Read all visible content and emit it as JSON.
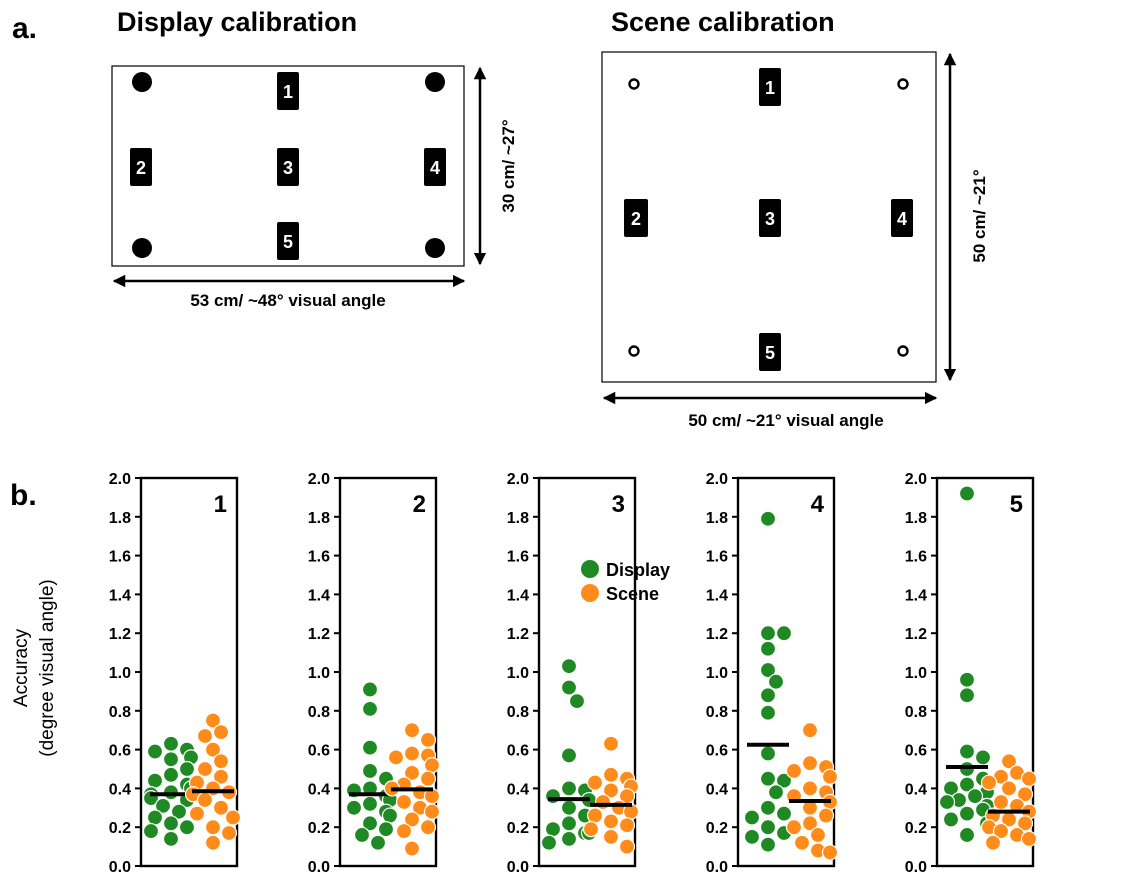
{
  "panel_a": {
    "label": "a.",
    "display": {
      "title": "Display calibration",
      "targets": [
        "1",
        "2",
        "3",
        "4",
        "5"
      ],
      "width_label": "53 cm/ ~48° visual angle",
      "height_label": "30 cm/ ~27°"
    },
    "scene": {
      "title": "Scene calibration",
      "targets": [
        "1",
        "2",
        "3",
        "4",
        "5"
      ],
      "width_label": "50 cm/ ~21° visual angle",
      "height_label": "50 cm/ ~21°"
    }
  },
  "panel_b": {
    "label": "b.",
    "ylabel_line1": "Accuracy",
    "ylabel_line2": "(degree visual angle)",
    "ticks": [
      "0.0",
      "0.2",
      "0.4",
      "0.6",
      "0.8",
      "1.0",
      "1.2",
      "1.4",
      "1.6",
      "1.8",
      "2.0"
    ]
  },
  "colors": {
    "display": "#1f8a24",
    "scene": "#ff8c1a",
    "mean_bar": "#000000"
  },
  "chart_data": {
    "type": "scatter",
    "ylabel": "Accuracy (degree visual angle)",
    "ylim": [
      0,
      2.0
    ],
    "legend": {
      "entries": [
        "Display",
        "Scene"
      ],
      "placement": "inside panel 3, upper-left"
    },
    "panels": [
      {
        "title": "1",
        "series": [
          {
            "name": "Display",
            "mean": 0.37,
            "values": [
              0.63,
              0.6,
              0.59,
              0.56,
              0.55,
              0.5,
              0.47,
              0.44,
              0.42,
              0.4,
              0.38,
              0.37,
              0.35,
              0.34,
              0.31,
              0.28,
              0.25,
              0.22,
              0.2,
              0.18,
              0.14
            ]
          },
          {
            "name": "Scene",
            "mean": 0.385,
            "values": [
              0.75,
              0.69,
              0.67,
              0.6,
              0.54,
              0.5,
              0.46,
              0.43,
              0.4,
              0.38,
              0.37,
              0.34,
              0.3,
              0.27,
              0.25,
              0.2,
              0.17,
              0.12
            ]
          }
        ]
      },
      {
        "title": "2",
        "series": [
          {
            "name": "Display",
            "mean": 0.37,
            "values": [
              0.91,
              0.81,
              0.61,
              0.49,
              0.45,
              0.4,
              0.39,
              0.36,
              0.34,
              0.32,
              0.3,
              0.28,
              0.26,
              0.22,
              0.19,
              0.16,
              0.12
            ]
          },
          {
            "name": "Scene",
            "mean": 0.395,
            "values": [
              0.7,
              0.65,
              0.58,
              0.57,
              0.56,
              0.52,
              0.48,
              0.45,
              0.42,
              0.4,
              0.38,
              0.36,
              0.33,
              0.3,
              0.28,
              0.24,
              0.2,
              0.18,
              0.09
            ]
          }
        ]
      },
      {
        "title": "3",
        "series": [
          {
            "name": "Display",
            "mean": 0.345,
            "values": [
              1.03,
              0.92,
              0.85,
              0.57,
              0.4,
              0.39,
              0.36,
              0.34,
              0.3,
              0.26,
              0.22,
              0.19,
              0.17,
              0.17,
              0.14,
              0.12,
              0.12
            ]
          },
          {
            "name": "Scene",
            "mean": 0.315,
            "values": [
              0.63,
              0.47,
              0.45,
              0.43,
              0.41,
              0.39,
              0.36,
              0.33,
              0.3,
              0.28,
              0.26,
              0.23,
              0.21,
              0.19,
              0.15,
              0.1
            ]
          }
        ]
      },
      {
        "title": "4",
        "series": [
          {
            "name": "Display",
            "mean": 0.625,
            "values": [
              1.79,
              1.2,
              1.2,
              1.12,
              1.01,
              0.95,
              0.88,
              0.79,
              0.58,
              0.45,
              0.44,
              0.38,
              0.3,
              0.27,
              0.25,
              0.2,
              0.17,
              0.15,
              0.11
            ]
          },
          {
            "name": "Scene",
            "mean": 0.335,
            "values": [
              0.7,
              0.53,
              0.51,
              0.49,
              0.46,
              0.4,
              0.38,
              0.36,
              0.33,
              0.3,
              0.26,
              0.22,
              0.2,
              0.16,
              0.12,
              0.08,
              0.07
            ]
          }
        ]
      },
      {
        "title": "5",
        "series": [
          {
            "name": "Display",
            "mean": 0.51,
            "values": [
              1.92,
              0.96,
              0.88,
              0.59,
              0.56,
              0.5,
              0.45,
              0.42,
              0.4,
              0.38,
              0.36,
              0.34,
              0.33,
              0.31,
              0.29,
              0.27,
              0.24,
              0.22,
              0.16
            ]
          },
          {
            "name": "Scene",
            "mean": 0.28,
            "values": [
              0.54,
              0.48,
              0.46,
              0.45,
              0.43,
              0.4,
              0.37,
              0.33,
              0.31,
              0.28,
              0.26,
              0.24,
              0.22,
              0.2,
              0.18,
              0.16,
              0.14,
              0.12
            ]
          }
        ]
      }
    ]
  }
}
